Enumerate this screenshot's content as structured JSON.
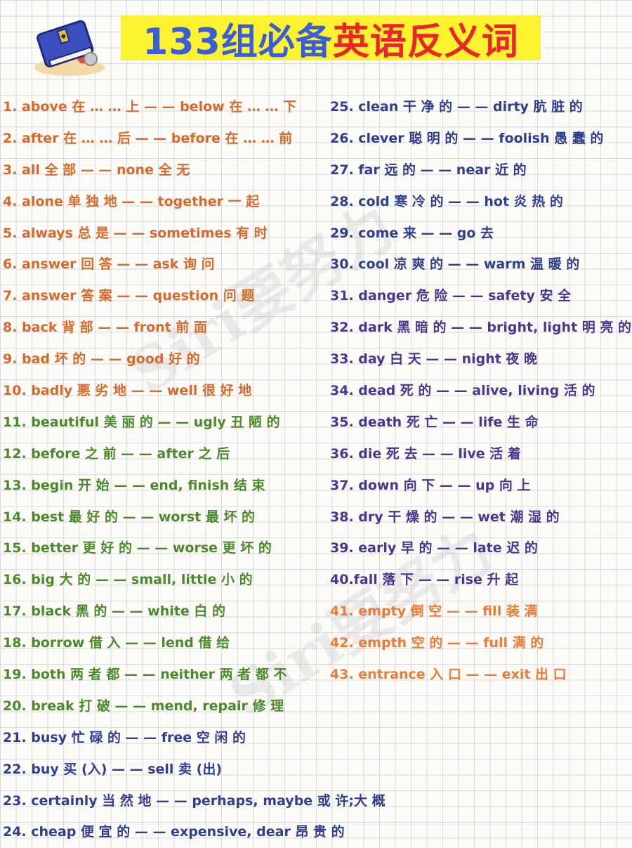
{
  "title": {
    "part1": "133组必备",
    "part2": "英语反义词"
  },
  "watermark": "Siri要努力",
  "colors": {
    "orange": "#d9692a",
    "green": "#4a8a2a",
    "blue": "#2f3f8f",
    "purple": "#4b3590",
    "light_orange": "#ef7a35",
    "title_blue": "#3a5ed8",
    "title_red": "#e8262b",
    "title_bg": "#fdf22f"
  },
  "left_items": [
    {
      "text": "1. above 在 … … 上 — — below 在 … … 下",
      "color": "orange"
    },
    {
      "text": "2. after 在 … … 后 — — before 在 … … 前",
      "color": "orange"
    },
    {
      "text": "3. all 全 部 — — none 全 无",
      "color": "orange"
    },
    {
      "text": "4. alone 单 独 地 — — together 一 起",
      "color": "orange"
    },
    {
      "text": "5. always 总 是 — — sometimes 有 时",
      "color": "orange"
    },
    {
      "text": "6. answer 回 答 — — ask 询 问",
      "color": "orange"
    },
    {
      "text": "7. answer 答 案 — — question 问 题",
      "color": "orange"
    },
    {
      "text": "8. back 背 部 — — front 前 面",
      "color": "orange"
    },
    {
      "text": "9. bad 坏 的 — — good 好 的",
      "color": "orange"
    },
    {
      "text": "10. badly 悪 劣 地 — — well 很 好 地",
      "color": "orange"
    },
    {
      "text": "11. beautiful 美 丽 的 — — ugly 丑 陋 的",
      "color": "green"
    },
    {
      "text": "12. before 之 前 — — after 之 后",
      "color": "green"
    },
    {
      "text": "13. begin 开 始 — — end, finish 结 束",
      "color": "green"
    },
    {
      "text": "14. best 最 好 的 — — worst 最 坏 的",
      "color": "green"
    },
    {
      "text": "15. better 更 好 的 — — worse 更 坏 的",
      "color": "green"
    },
    {
      "text": "16. big 大 的 — — small, little 小 的",
      "color": "green"
    },
    {
      "text": "17. black 黑 的 — — white 白 的",
      "color": "green"
    },
    {
      "text": "18. borrow 借 入 — — lend 借 给",
      "color": "green"
    },
    {
      "text": "19. both 两 者 都 — — neither 两 者 都 不",
      "color": "green"
    },
    {
      "text": "20. break 打 破 — — mend, repair 修 理",
      "color": "green"
    },
    {
      "text": "21. busy 忙 碌 的 — — free 空 闲 的",
      "color": "blue"
    },
    {
      "text": "22. buy 买 (入) — — sell 卖 (出)",
      "color": "blue"
    },
    {
      "text": "23. certainly 当 然 地 — — perhaps, maybe 或 许;大 概",
      "color": "blue"
    },
    {
      "text": "24. cheap 便 宜 的 — — expensive, dear 昂 贵 的",
      "color": "blue"
    }
  ],
  "right_items": [
    {
      "text": "25. clean 干 净 的 — — dirty 肮 脏 的",
      "color": "blue"
    },
    {
      "text": "26. clever 聪 明 的 — — foolish 愚 蠢 的",
      "color": "blue"
    },
    {
      "text": "27. far 远 的 — — near 近 的",
      "color": "blue"
    },
    {
      "text": "28. cold 寒 冷 的 — — hot 炎 热 的",
      "color": "blue"
    },
    {
      "text": "29. come 来 — — go 去",
      "color": "blue"
    },
    {
      "text": "30. cool 凉 爽 的 — — warm 温 暖 的",
      "color": "blue"
    },
    {
      "text": "31. danger 危 险 — — safety 安 全",
      "color": "purple"
    },
    {
      "text": "32. dark 黑 暗 的 — — bright, light 明 亮 的",
      "color": "purple"
    },
    {
      "text": "33. day 白 天 — — night 夜 晚",
      "color": "purple"
    },
    {
      "text": "34. dead 死 的 — — alive, living 活 的",
      "color": "purple"
    },
    {
      "text": "35. death 死 亡 — — life 生 命",
      "color": "purple"
    },
    {
      "text": "36. die 死 去 — — live 活 着",
      "color": "purple"
    },
    {
      "text": "37. down 向 下 — — up 向 上",
      "color": "purple"
    },
    {
      "text": "38. dry 干 燥 的 — — wet 潮 湿 的",
      "color": "purple"
    },
    {
      "text": "39. early 早 的 — — late 迟 的",
      "color": "purple"
    },
    {
      "text": "40.fall 落 下 — — rise 升 起",
      "color": "purple"
    },
    {
      "text": "41. empty 倒 空 — — fill 装 满",
      "color": "light_orange"
    },
    {
      "text": "42. empth 空 的 — — full 满 的",
      "color": "light_orange"
    },
    {
      "text": "43. entrance 入 口 — — exit 出 口",
      "color": "light_orange"
    }
  ]
}
